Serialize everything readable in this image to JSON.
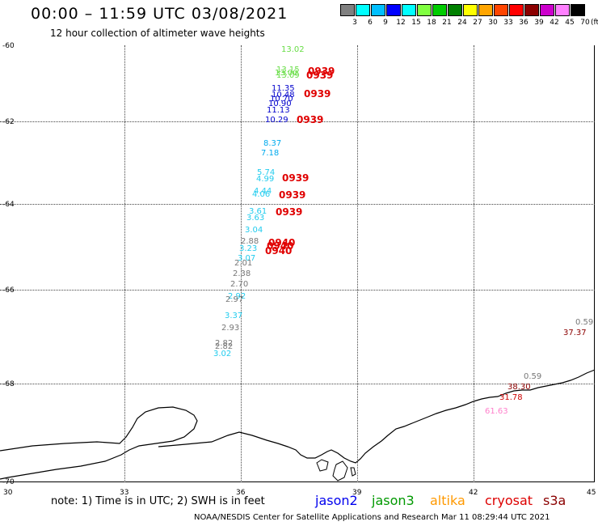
{
  "header": {
    "title": "00:00 – 11:59 UTC 03/08/2021",
    "subtitle": "12 hour collection of altimeter wave heights"
  },
  "legend": {
    "colors": [
      "#808080",
      "#00ffff",
      "#00bfff",
      "#0000ff",
      "#00ffff",
      "#80ff40",
      "#00cc00",
      "#008000",
      "#ffff00",
      "#ffa500",
      "#ff4500",
      "#ff0000",
      "#8b0000",
      "#cc00cc",
      "#ff80ff",
      "#000000"
    ],
    "labels": [
      "3",
      "6",
      "9",
      "12",
      "15",
      "18",
      "21",
      "24",
      "27",
      "30",
      "33",
      "36",
      "39",
      "42",
      "45",
      "70"
    ],
    "unit": "(ft)"
  },
  "axes": {
    "y_labels": [
      "-60",
      "-62",
      "-64",
      "-66",
      "-68",
      "-70"
    ],
    "x_labels": [
      "30",
      "33",
      "36",
      "39",
      "42",
      "45"
    ]
  },
  "points": [
    {
      "text": "13.02",
      "color": "#66dd44"
    },
    {
      "text": "13.15",
      "color": "#66dd44"
    },
    {
      "text": "13.00",
      "color": "#66dd44"
    },
    {
      "text": "13.09",
      "color": "#66dd44"
    },
    {
      "text": "11.35",
      "color": "#0000cc"
    },
    {
      "text": "10.48",
      "color": "#0000cc"
    },
    {
      "text": "10.70",
      "color": "#0000cc"
    },
    {
      "text": "10.90",
      "color": "#0000cc"
    },
    {
      "text": "11.13",
      "color": "#0000cc"
    },
    {
      "text": "10.29",
      "color": "#0000cc"
    },
    {
      "text": "8.37",
      "color": "#00aaee"
    },
    {
      "text": "7.18",
      "color": "#00aaee"
    },
    {
      "text": "5.74",
      "color": "#22ccee"
    },
    {
      "text": "4.99",
      "color": "#22ccee"
    },
    {
      "text": "4.44",
      "color": "#22ccee"
    },
    {
      "text": "4.06",
      "color": "#22ccee"
    },
    {
      "text": "3.61",
      "color": "#22ccee"
    },
    {
      "text": "3.63",
      "color": "#22ccee"
    },
    {
      "text": "3.04",
      "color": "#22ccee"
    },
    {
      "text": "2.88",
      "color": "#777777"
    },
    {
      "text": "3.23",
      "color": "#22ccee"
    },
    {
      "text": "3.07",
      "color": "#22ccee"
    },
    {
      "text": "2.01",
      "color": "#777777"
    },
    {
      "text": "2.38",
      "color": "#777777"
    },
    {
      "text": "2.70",
      "color": "#777777"
    },
    {
      "text": "2.92",
      "color": "#22ccee"
    },
    {
      "text": "2.97",
      "color": "#777777"
    },
    {
      "text": "3.37",
      "color": "#22ccee"
    },
    {
      "text": "2.93",
      "color": "#777777"
    },
    {
      "text": "2.82",
      "color": "#777777"
    },
    {
      "text": "2.82",
      "color": "#777777"
    },
    {
      "text": "3.02",
      "color": "#22ccee"
    },
    {
      "text": "0.59",
      "color": "#777777"
    },
    {
      "text": "37.37",
      "color": "#8b0000"
    },
    {
      "text": "0.59",
      "color": "#777777"
    },
    {
      "text": "38.30",
      "color": "#8b0000"
    },
    {
      "text": "31.78",
      "color": "#cc0000"
    },
    {
      "text": "61.63",
      "color": "#ff80cc"
    }
  ],
  "times": [
    "0939",
    "0939",
    "0939",
    "0939",
    "0939",
    "0939",
    "0939",
    "0940",
    "0940",
    "0940"
  ],
  "note": "note: 1) Time is in UTC; 2) SWH is in feet",
  "satellites": [
    {
      "name": "jason2",
      "color": "#0000ee"
    },
    {
      "name": "jason3",
      "color": "#009900"
    },
    {
      "name": "altika",
      "color": "#ff9900"
    },
    {
      "name": "cryosat",
      "color": "#dd0000"
    },
    {
      "name": "s3a",
      "color": "#8b0000"
    }
  ],
  "credit": "NOAA/NESDIS Center for Satellite Applications and Research    Mar 11 08:29:44 UTC 2021"
}
